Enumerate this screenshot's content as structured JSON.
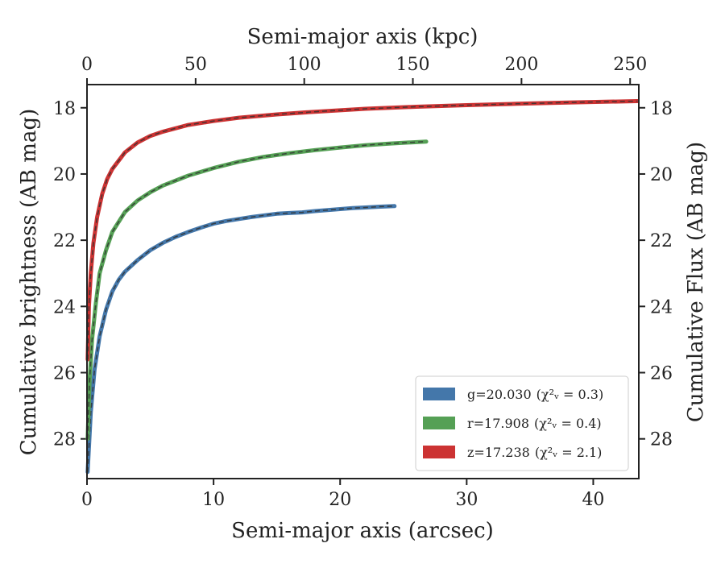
{
  "chart_data": {
    "type": "line",
    "xlabel": "Semi-major axis (arcsec)",
    "xlabel_top": "Semi-major axis (kpc)",
    "ylabel": "Cumulative brightness (AB mag)",
    "ylabel_right": "Cumulative Flux (AB mag)",
    "xlim": [
      0,
      43.6
    ],
    "ylim": [
      29.2,
      17.3
    ],
    "xlim_top": [
      0,
      254
    ],
    "y_inverted": true,
    "grid": false,
    "legend_position": "lower-right",
    "x_ticks": [
      0,
      10,
      20,
      30,
      40
    ],
    "x_tick_labels": [
      "0",
      "10",
      "20",
      "30",
      "40"
    ],
    "x_top_ticks": [
      0,
      50,
      100,
      150,
      200,
      250
    ],
    "x_top_tick_labels": [
      "0",
      "50",
      "100",
      "150",
      "200",
      "250"
    ],
    "y_ticks": [
      18,
      20,
      22,
      24,
      26,
      28
    ],
    "y_tick_labels": [
      "18",
      "20",
      "22",
      "24",
      "26",
      "28"
    ],
    "series": [
      {
        "name": "g",
        "legend_label": "g=20.030",
        "chi2_label": "(χ²ᵥ = 0.3)",
        "color": "#4477aa",
        "x": [
          0.05,
          0.3,
          0.6,
          1.0,
          1.5,
          2.0,
          2.5,
          3.0,
          4.0,
          5.0,
          6.0,
          7.0,
          8.0,
          9.0,
          10.0,
          11.0,
          12.0,
          13.0,
          14.0,
          15.0,
          16.0,
          17.0,
          18.0,
          19.0,
          20.0,
          21.0,
          22.0,
          23.0,
          24.3
        ],
        "y": [
          29.0,
          27.2,
          25.9,
          24.9,
          24.1,
          23.55,
          23.2,
          22.95,
          22.6,
          22.3,
          22.08,
          21.9,
          21.75,
          21.62,
          21.5,
          21.42,
          21.36,
          21.3,
          21.25,
          21.2,
          21.18,
          21.16,
          21.12,
          21.09,
          21.06,
          21.03,
          21.01,
          20.99,
          20.97
        ]
      },
      {
        "name": "r",
        "legend_label": "r=17.908",
        "chi2_label": "(χ²ᵥ = 0.4)",
        "color": "#55a055",
        "x": [
          0.05,
          0.2,
          0.4,
          0.7,
          1.0,
          1.5,
          2.0,
          3.0,
          4.0,
          5.0,
          6.0,
          8.0,
          10.0,
          12.0,
          14.0,
          16.0,
          18.0,
          20.0,
          22.0,
          24.0,
          26.8
        ],
        "y": [
          28.0,
          26.3,
          25.0,
          23.9,
          23.0,
          22.3,
          21.75,
          21.15,
          20.8,
          20.55,
          20.35,
          20.05,
          19.82,
          19.63,
          19.48,
          19.37,
          19.28,
          19.2,
          19.13,
          19.08,
          19.02
        ]
      },
      {
        "name": "z",
        "legend_label": "z=17.238",
        "chi2_label": "(χ²ᵥ = 2.1)",
        "color": "#cc3333",
        "x": [
          0.05,
          0.15,
          0.3,
          0.5,
          0.8,
          1.2,
          1.6,
          2.0,
          3.0,
          4.0,
          5.0,
          6.0,
          8.0,
          10.0,
          12.0,
          15.0,
          18.0,
          22.0,
          26.0,
          30.0,
          34.0,
          38.0,
          43.5
        ],
        "y": [
          25.6,
          24.0,
          23.0,
          22.1,
          21.3,
          20.6,
          20.15,
          19.85,
          19.35,
          19.05,
          18.85,
          18.72,
          18.52,
          18.4,
          18.3,
          18.2,
          18.12,
          18.03,
          17.97,
          17.92,
          17.88,
          17.84,
          17.8
        ]
      }
    ]
  }
}
